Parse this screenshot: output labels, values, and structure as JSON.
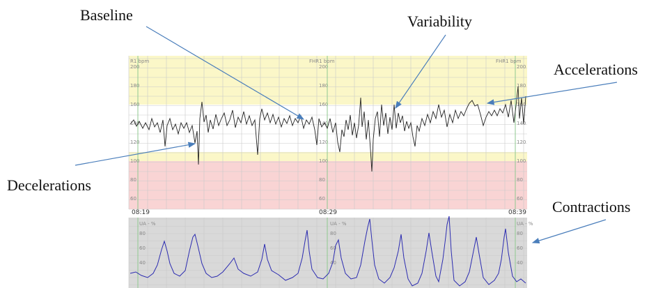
{
  "annotations": {
    "baseline": "Baseline",
    "variability": "Variability",
    "accelerations": "Accelerations",
    "decelerations": "Decelerations",
    "contractions": "Contractions"
  },
  "fhr_panel": {
    "channel_labels": [
      "R1 bpm",
      "FHR1 bpm",
      "FHR1 bpm"
    ],
    "tick_labels": [
      "200",
      "180",
      "160",
      "140",
      "120",
      "100",
      "80",
      "60"
    ]
  },
  "times": [
    "08:19",
    "08:29",
    "08:39"
  ],
  "ua_panel": {
    "channel_labels": [
      "UA - %",
      "UA - %",
      "UA - %"
    ],
    "tick_labels": [
      "80",
      "60",
      "40"
    ]
  }
}
